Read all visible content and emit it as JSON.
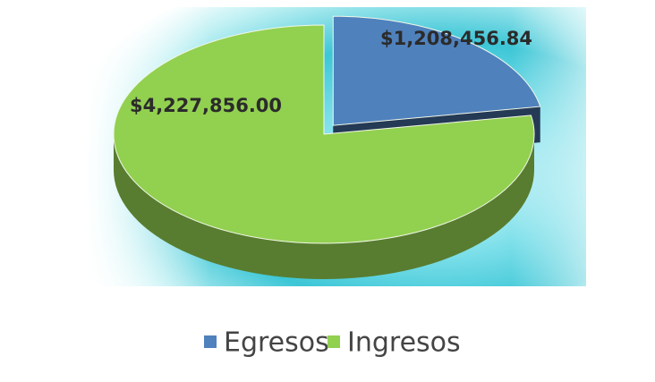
{
  "chart_data": {
    "type": "pie",
    "categories": [
      "Egresos",
      "Ingresos"
    ],
    "values": [
      1208456.84,
      4227856.0
    ],
    "value_labels": [
      "$1,208,456.84",
      "$4,227,856.00"
    ],
    "colors": [
      "#4f81bd",
      "#92d050"
    ],
    "legend": "bottom"
  }
}
